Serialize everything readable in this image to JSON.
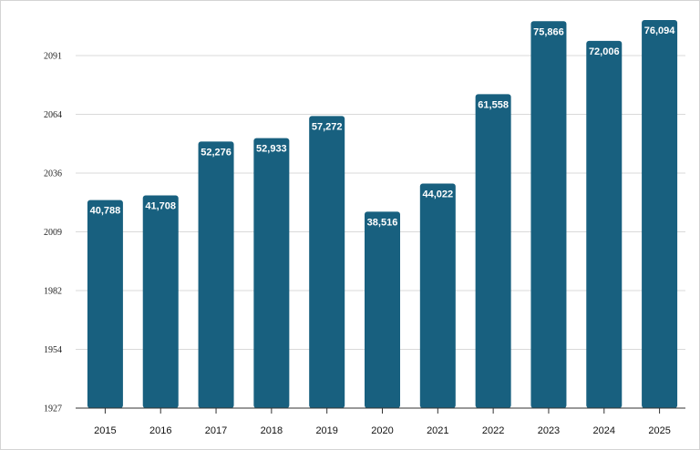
{
  "chart_data": {
    "type": "bar",
    "title": "",
    "xlabel": "",
    "ylabel": "",
    "categories": [
      "2015",
      "2016",
      "2017",
      "2018",
      "2019",
      "2020",
      "2021",
      "2022",
      "2023",
      "2024",
      "2025"
    ],
    "values": [
      40788,
      41708,
      52276,
      52933,
      57272,
      38516,
      44022,
      61558,
      75866,
      72006,
      76094
    ],
    "value_labels": [
      "40,788",
      "41,708",
      "52,276",
      "52,933",
      "57,272",
      "38,516",
      "44,022",
      "61,558",
      "75,866",
      "72,006",
      "76,094"
    ],
    "ylim": [
      1927,
      2104
    ],
    "ytick_labels": [
      "1927",
      "1954",
      "1982",
      "2009",
      "2036",
      "2064",
      "2091"
    ],
    "bar_color": "#18607f",
    "grid": true,
    "legend": "none"
  }
}
